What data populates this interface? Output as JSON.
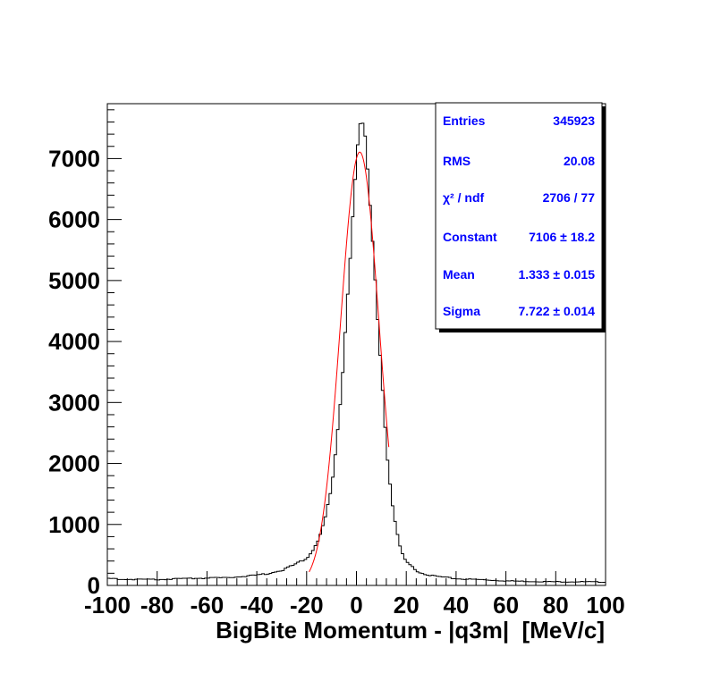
{
  "chart_data": {
    "type": "histogram",
    "xlabel": "BigBite Momentum - |q3m|  [MeV/c]",
    "ylabel": "",
    "xlim": [
      -100,
      100
    ],
    "ylim": [
      0,
      7900
    ],
    "bin_width": 1,
    "x_ticks": [
      "-100",
      "-80",
      "-60",
      "-40",
      "-20",
      "0",
      "20",
      "40",
      "60",
      "80",
      "100"
    ],
    "y_ticks": [
      "0",
      "1000",
      "2000",
      "3000",
      "4000",
      "5000",
      "6000",
      "7000"
    ],
    "colors": {
      "histogram": "#000000",
      "fit": "#ff0000",
      "stats_text": "#0000ff"
    },
    "fit": {
      "function": "gaus",
      "constant": 7106,
      "mean": 1.333,
      "sigma": 7.722,
      "range": [
        -19,
        13
      ]
    },
    "stats": [
      {
        "label": "Entries",
        "value": "345923"
      },
      {
        "label": "RMS",
        "value": "20.08"
      },
      {
        "label": "χ² / ndf",
        "value": "2706 / 77"
      },
      {
        "label": "Constant",
        "value": "7106 ± 18.2"
      },
      {
        "label": "Mean",
        "value": "1.333 ± 0.015"
      },
      {
        "label": "Sigma",
        "value": "7.722 ± 0.014"
      }
    ],
    "series": [
      {
        "name": "histogram",
        "points": [
          [
            -100,
            110
          ],
          [
            -90,
            100
          ],
          [
            -80,
            95
          ],
          [
            -70,
            110
          ],
          [
            -60,
            120
          ],
          [
            -50,
            130
          ],
          [
            -40,
            170
          ],
          [
            -35,
            200
          ],
          [
            -30,
            250
          ],
          [
            -25,
            330
          ],
          [
            -20,
            450
          ],
          [
            -18,
            550
          ],
          [
            -16,
            700
          ],
          [
            -14,
            900
          ],
          [
            -12,
            1200
          ],
          [
            -10,
            1600
          ],
          [
            -8,
            2300
          ],
          [
            -6,
            3200
          ],
          [
            -4,
            4500
          ],
          [
            -2,
            5700
          ],
          [
            -1,
            6400
          ],
          [
            0,
            7050
          ],
          [
            1,
            7400
          ],
          [
            2,
            7600
          ],
          [
            3,
            7550
          ],
          [
            4,
            7100
          ],
          [
            5,
            6500
          ],
          [
            6,
            5900
          ],
          [
            8,
            4700
          ],
          [
            10,
            3500
          ],
          [
            12,
            2300
          ],
          [
            14,
            1450
          ],
          [
            16,
            900
          ],
          [
            18,
            550
          ],
          [
            20,
            380
          ],
          [
            25,
            220
          ],
          [
            30,
            160
          ],
          [
            40,
            110
          ],
          [
            50,
            95
          ],
          [
            60,
            75
          ],
          [
            70,
            65
          ],
          [
            80,
            60
          ],
          [
            90,
            60
          ],
          [
            100,
            55
          ]
        ]
      }
    ]
  }
}
